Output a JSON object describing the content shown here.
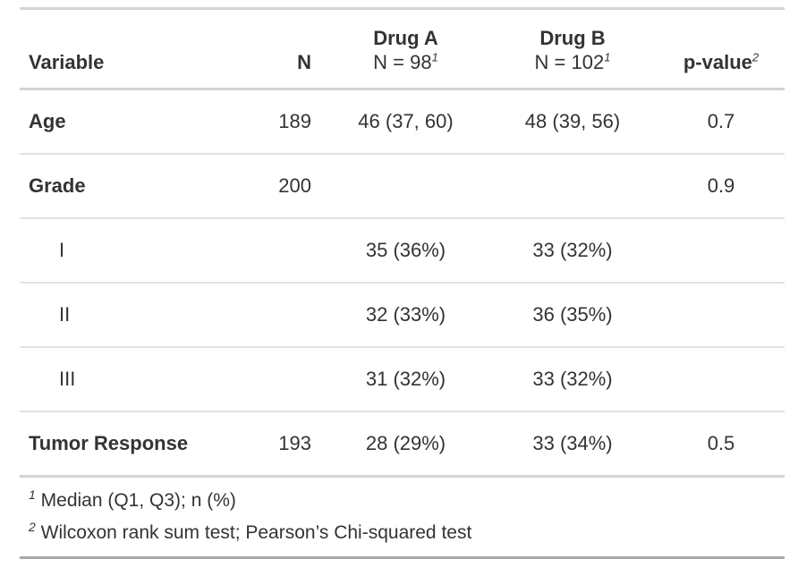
{
  "chart_data": {
    "type": "table",
    "title": "",
    "columns": [
      {
        "id": "variable",
        "header": "Variable",
        "align": "left"
      },
      {
        "id": "n",
        "header": "N",
        "align": "right"
      },
      {
        "id": "drug_a",
        "header_line1": "Drug A",
        "header_line2": "N = 98",
        "footnote_mark": "1",
        "align": "center"
      },
      {
        "id": "drug_b",
        "header_line1": "Drug B",
        "header_line2": "N = 102",
        "footnote_mark": "1",
        "align": "center"
      },
      {
        "id": "p_value",
        "header": "p-value",
        "footnote_mark": "2",
        "align": "center"
      }
    ],
    "rows": [
      {
        "variable": "Age",
        "n": "189",
        "drug_a": "46 (37, 60)",
        "drug_b": "48 (39, 56)",
        "p_value": "0.7",
        "indent": false
      },
      {
        "variable": "Grade",
        "n": "200",
        "drug_a": "",
        "drug_b": "",
        "p_value": "0.9",
        "indent": false
      },
      {
        "variable": "I",
        "n": "",
        "drug_a": "35 (36%)",
        "drug_b": "33 (32%)",
        "p_value": "",
        "indent": true
      },
      {
        "variable": "II",
        "n": "",
        "drug_a": "32 (33%)",
        "drug_b": "36 (35%)",
        "p_value": "",
        "indent": true
      },
      {
        "variable": "III",
        "n": "",
        "drug_a": "31 (32%)",
        "drug_b": "33 (32%)",
        "p_value": "",
        "indent": true
      },
      {
        "variable": "Tumor Response",
        "n": "193",
        "drug_a": "28 (29%)",
        "drug_b": "33 (34%)",
        "p_value": "0.5",
        "indent": false
      }
    ],
    "footnotes": [
      {
        "mark": "1",
        "text": "Median (Q1, Q3); n (%)"
      },
      {
        "mark": "2",
        "text": "Wilcoxon rank sum test; Pearson’s Chi-squared test"
      }
    ],
    "layout": {
      "grid": "horizontal-rules-only",
      "legend": "none"
    },
    "colors": {
      "text": "#333333",
      "border_light": "#d3d3d3",
      "border_row_separator": "#e2e2e2",
      "border_table_bottom": "#a9a9a9",
      "background": "#ffffff"
    }
  }
}
